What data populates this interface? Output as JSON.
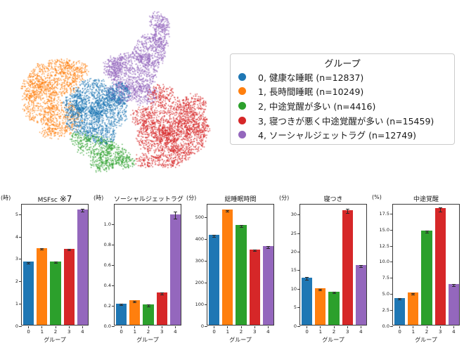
{
  "legend": {
    "title": "グループ",
    "items": [
      {
        "label": "0, 健康な睡眠 (n=12837)",
        "color": "#1f77b4"
      },
      {
        "label": "1, 長時間睡眠 (n=10249)",
        "color": "#ff7f0e"
      },
      {
        "label": "2, 中途覚醒が多い (n=4416)",
        "color": "#2ca02c"
      },
      {
        "label": "3, 寝つきが悪く中途覚醒が多い (n=15459)",
        "color": "#d62728"
      },
      {
        "label": "4, ソーシャルジェットラグ (n=12749)",
        "color": "#9467bd"
      }
    ]
  },
  "group_colors": [
    "#1f77b4",
    "#ff7f0e",
    "#2ca02c",
    "#d62728",
    "#9467bd"
  ],
  "chart_data": [
    {
      "type": "scatter",
      "name": "umap-cluster-map",
      "legend_position": "right",
      "grid": false,
      "clusters": [
        {
          "group": 1,
          "color": "#ff7f0e",
          "points": 1650,
          "seed": 22,
          "ellipses": [
            [
              80,
              110,
              38,
              26
            ],
            [
              58,
              145,
              26,
              32
            ],
            [
              88,
              168,
              28,
              24
            ],
            [
              105,
              98,
              22,
              14
            ],
            [
              45,
              125,
              14,
              22
            ],
            [
              75,
              185,
              18,
              12
            ]
          ]
        },
        {
          "group": 4,
          "color": "#9467bd",
          "points": 2000,
          "seed": 55,
          "ellipses": [
            [
              188,
              102,
              34,
              28
            ],
            [
              212,
              72,
              24,
              24
            ],
            [
              172,
              132,
              20,
              16
            ],
            [
              228,
              50,
              13,
              16
            ],
            [
              233,
              32,
              7,
              11
            ],
            [
              160,
              95,
              14,
              14
            ],
            [
              205,
              135,
              18,
              14
            ],
            [
              222,
              28,
              10,
              12
            ]
          ]
        },
        {
          "group": 0,
          "color": "#1f77b4",
          "points": 2000,
          "seed": 11,
          "ellipses": [
            [
              132,
              138,
              30,
              26
            ],
            [
              118,
              170,
              26,
              20
            ],
            [
              155,
              158,
              26,
              24
            ],
            [
              142,
              192,
              24,
              12
            ],
            [
              168,
              132,
              16,
              16
            ],
            [
              105,
              150,
              15,
              18
            ]
          ]
        },
        {
          "group": 3,
          "color": "#d62728",
          "points": 2450,
          "seed": 44,
          "ellipses": [
            [
              242,
              170,
              40,
              32
            ],
            [
              262,
              195,
              30,
              26
            ],
            [
              218,
              195,
              24,
              22
            ],
            [
              275,
              150,
              18,
              16
            ],
            [
              242,
              222,
              26,
              16
            ],
            [
              208,
              228,
              16,
              10
            ],
            [
              288,
              180,
              9,
              18
            ],
            [
              228,
              132,
              18,
              12
            ],
            [
              200,
              165,
              14,
              14
            ]
          ]
        },
        {
          "group": 2,
          "color": "#2ca02c",
          "points": 720,
          "seed": 33,
          "ellipses": [
            [
              135,
              208,
              26,
              16
            ],
            [
              160,
              220,
              20,
              16
            ],
            [
              112,
              196,
              13,
              10
            ],
            [
              178,
              228,
              13,
              10
            ],
            [
              145,
              234,
              18,
              9
            ]
          ]
        }
      ]
    },
    {
      "type": "bar",
      "title": "MSFsc",
      "title_suffix": "※7",
      "unit": "(時)",
      "xlabel": "グループ",
      "categories": [
        "0",
        "1",
        "2",
        "3",
        "4"
      ],
      "values": [
        2.83,
        3.45,
        2.85,
        3.41,
        5.18
      ],
      "errors": [
        0.03,
        0.03,
        0.03,
        0.03,
        0.05
      ],
      "ylim": [
        0,
        5.45
      ],
      "yticks": [
        "0",
        "1",
        "2",
        "3",
        "4",
        "5"
      ],
      "grid": false
    },
    {
      "type": "bar",
      "title": "ソーシャルジェットラグ",
      "unit": "(時)",
      "xlabel": "グループ",
      "categories": [
        "0",
        "1",
        "2",
        "3",
        "4"
      ],
      "values": [
        0.21,
        0.24,
        0.2,
        0.32,
        1.09
      ],
      "errors": [
        0.008,
        0.008,
        0.01,
        0.012,
        0.035
      ],
      "ylim": [
        0,
        1.2
      ],
      "yticks": [
        "0.0",
        "0.2",
        "0.4",
        "0.6",
        "0.8",
        "1.0"
      ],
      "grid": false
    },
    {
      "type": "bar",
      "title": "総睡眠時間",
      "unit": "(分)",
      "xlabel": "グループ",
      "categories": [
        "0",
        "1",
        "2",
        "3",
        "4"
      ],
      "values": [
        415,
        530,
        461,
        348,
        362
      ],
      "errors": [
        4,
        4,
        5,
        4,
        4
      ],
      "ylim": [
        0,
        560
      ],
      "yticks": [
        "0",
        "100",
        "200",
        "300",
        "400",
        "500"
      ],
      "grid": false
    },
    {
      "type": "bar",
      "title": "寝つき",
      "unit": "(分)",
      "xlabel": "グループ",
      "categories": [
        "0",
        "1",
        "2",
        "3",
        "4"
      ],
      "values": [
        12.8,
        9.8,
        9.0,
        31.0,
        16.1
      ],
      "errors": [
        0.3,
        0.2,
        0.25,
        0.5,
        0.3
      ],
      "ylim": [
        0,
        32.8
      ],
      "yticks": [
        "0",
        "5",
        "10",
        "15",
        "20",
        "25",
        "30"
      ],
      "grid": false
    },
    {
      "type": "bar",
      "title": "中途覚醒",
      "unit": "(%)",
      "xlabel": "グループ",
      "categories": [
        "0",
        "1",
        "2",
        "3",
        "4"
      ],
      "values": [
        4.2,
        5.0,
        14.7,
        18.2,
        6.4
      ],
      "errors": [
        0.12,
        0.12,
        0.2,
        0.3,
        0.15
      ],
      "ylim": [
        0,
        19.0
      ],
      "yticks": [
        "0.0",
        "2.5",
        "5.0",
        "7.5",
        "10.0",
        "12.5",
        "15.0",
        "17.5"
      ],
      "grid": false
    }
  ]
}
